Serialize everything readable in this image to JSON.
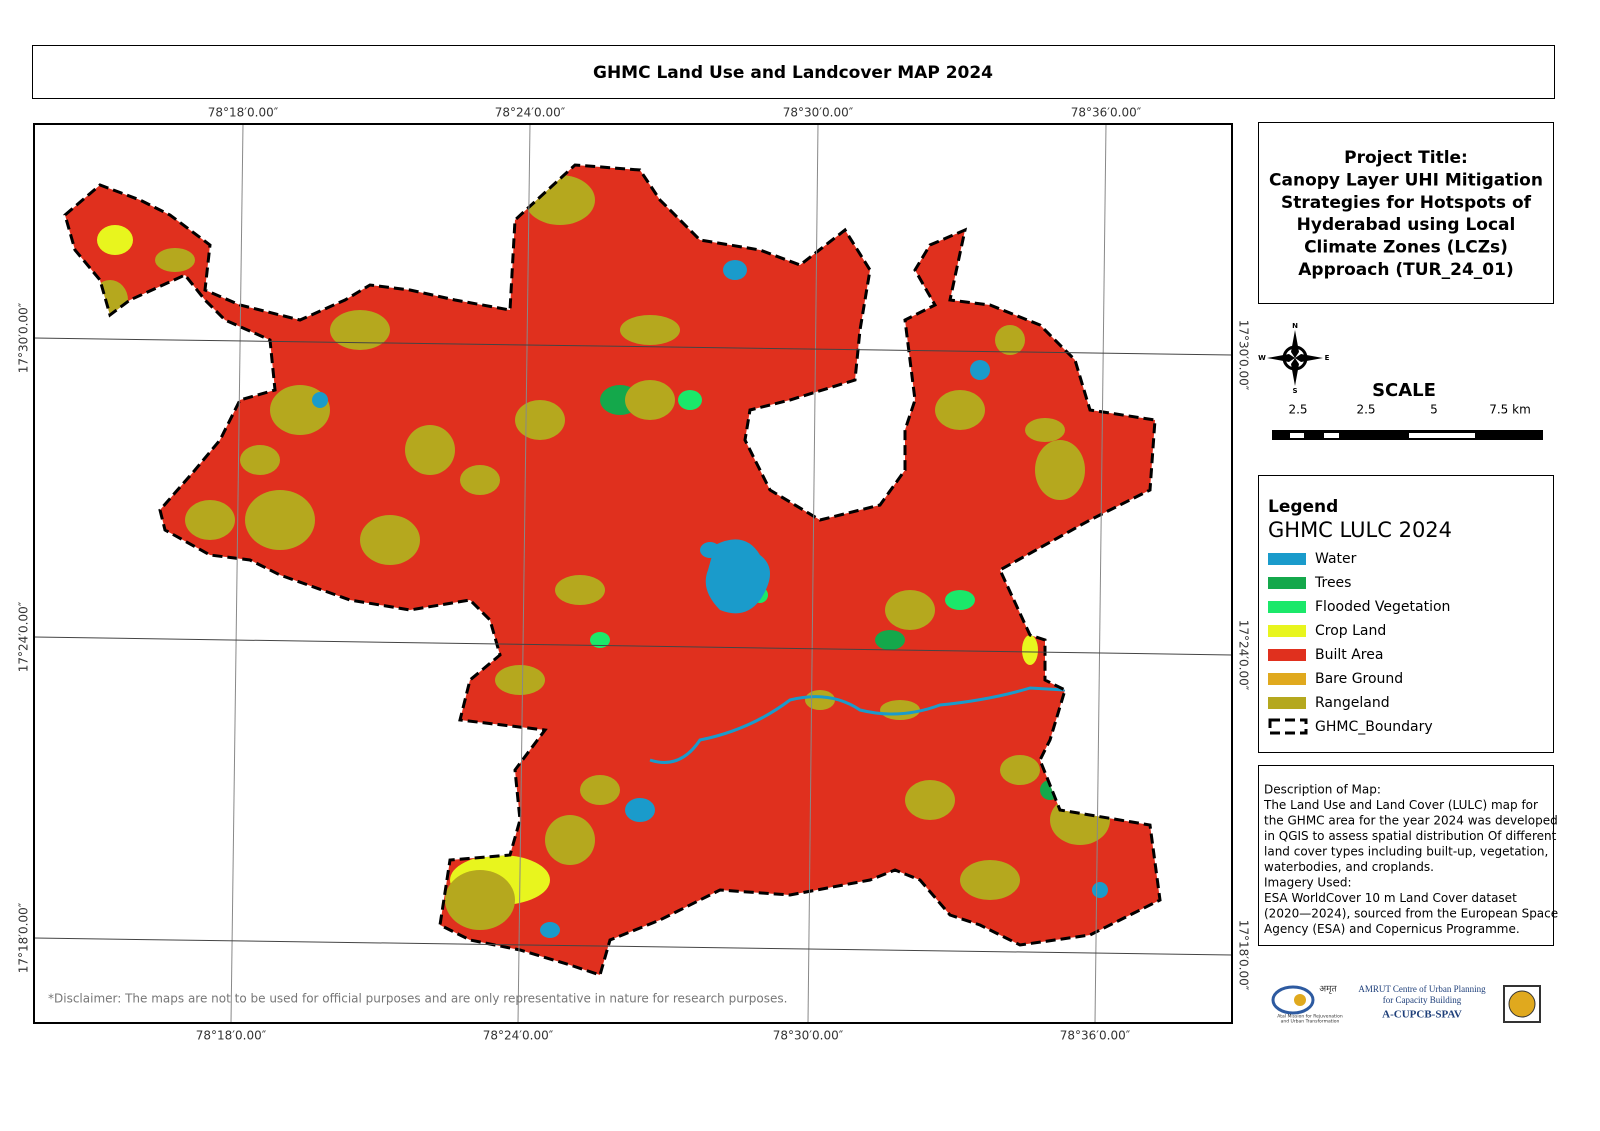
{
  "title": "GHMC Land Use and Landcover MAP 2024",
  "map": {
    "longitude_labels": [
      "78°18′0.00″",
      "78°24′0.00″",
      "78°30′0.00″",
      "78°36′0.00″"
    ],
    "latitude_labels": [
      "17°30′0.00″",
      "17°24′0.00″",
      "17°18′0.00″"
    ],
    "disclaimer": "*Disclaimer: The maps are not to be used for official purposes and are only representative in nature for research purposes."
  },
  "project": {
    "lines": [
      "Project Title:",
      "Canopy Layer UHI Mitigation",
      "Strategies for Hotspots of",
      "Hyderabad using Local",
      "Climate Zones (LCZs)",
      "Approach (TUR_24_01)"
    ]
  },
  "north_arrow": {
    "n": "N",
    "s": "S",
    "e": "E",
    "w": "W"
  },
  "scale": {
    "title": "SCALE",
    "labels": [
      "2.5",
      "2.5",
      "5",
      "7.5 km"
    ]
  },
  "legend": {
    "title": "Legend",
    "layer": "GHMC LULC 2024",
    "items": [
      {
        "label": "Water",
        "color": "#1a9bcb"
      },
      {
        "label": "Trees",
        "color": "#14a84b"
      },
      {
        "label": "Flooded Vegetation",
        "color": "#1be86a"
      },
      {
        "label": "Crop Land",
        "color": "#e8f51e"
      },
      {
        "label": "Built Area",
        "color": "#e0301e"
      },
      {
        "label": "Bare Ground",
        "color": "#e0a91e"
      },
      {
        "label": "Rangeland",
        "color": "#b5a81e"
      },
      {
        "label": "GHMC_Boundary",
        "symbol": "dashed"
      }
    ]
  },
  "description": {
    "lines": [
      "Description of Map:",
      "The Land Use and Land Cover (LULC) map for",
      "the GHMC area for the year 2024 was developed",
      "in QGIS to assess spatial distribution Of different",
      "land cover types including built-up, vegetation,",
      "waterbodies, and croplands.",
      "Imagery Used:",
      "ESA WorldCover 10 m Land Cover dataset",
      "(2020—2024), sourced from the European Space",
      "Agency (ESA) and Copernicus Programme."
    ]
  },
  "logos": {
    "amrut_hindi": "अमृत",
    "amrut_caption": [
      "Atal Mission for Rejuvenation",
      "and Urban Transformation"
    ],
    "centre": [
      "AMRUT Centre of Urban Planning",
      "for Capacity Building"
    ],
    "acronym": "A-CUPCB-SPAV"
  }
}
